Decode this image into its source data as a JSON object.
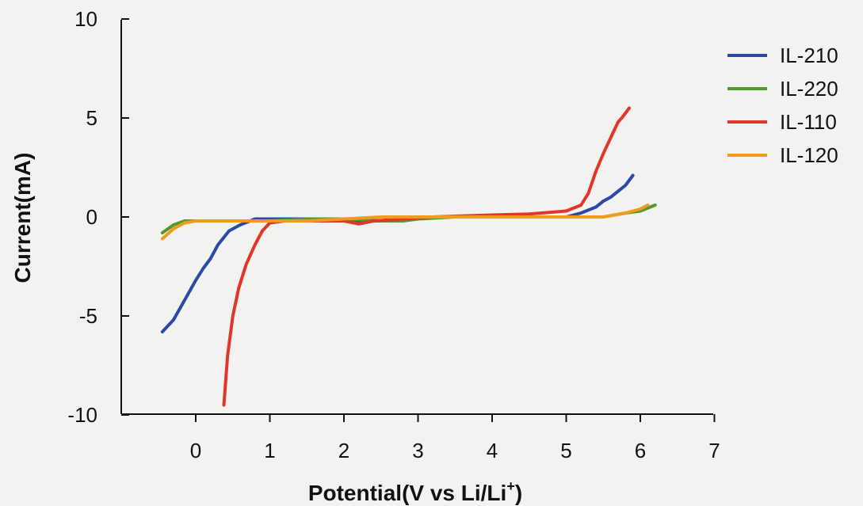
{
  "chart_data": {
    "type": "line",
    "xlabel": "Potential(V vs Li/Li",
    "xlabel_sup": "+",
    "xlabel_close": ")",
    "ylabel": "Current(mA)",
    "xlim": [
      -1,
      7
    ],
    "ylim": [
      -10,
      10
    ],
    "x_ticks": [
      0,
      1,
      2,
      3,
      4,
      5,
      6,
      7
    ],
    "y_ticks": [
      -10,
      -5,
      0,
      5,
      10
    ],
    "x_tick_labels": [
      "0",
      "1",
      "2",
      "3",
      "4",
      "5",
      "6",
      "7"
    ],
    "y_tick_labels": [
      "-10",
      "-5",
      "0",
      "5",
      "10"
    ],
    "grid": false,
    "legend_position": "top-right",
    "series": [
      {
        "name": "IL-210",
        "color": "#2b4aa8",
        "points": [
          [
            -0.45,
            -5.8
          ],
          [
            -0.3,
            -5.2
          ],
          [
            -0.15,
            -4.2
          ],
          [
            0,
            -3.2
          ],
          [
            0.1,
            -2.6
          ],
          [
            0.2,
            -2.1
          ],
          [
            0.3,
            -1.4
          ],
          [
            0.45,
            -0.7
          ],
          [
            0.6,
            -0.4
          ],
          [
            0.8,
            -0.1
          ],
          [
            1.0,
            -0.1
          ],
          [
            1.5,
            -0.1
          ],
          [
            2.0,
            -0.2
          ],
          [
            2.5,
            -0.2
          ],
          [
            3.0,
            0.0
          ],
          [
            3.5,
            0.0
          ],
          [
            4.0,
            0.0
          ],
          [
            4.5,
            0.0
          ],
          [
            5.0,
            0.0
          ],
          [
            5.2,
            0.2
          ],
          [
            5.4,
            0.5
          ],
          [
            5.5,
            0.8
          ],
          [
            5.6,
            1.0
          ],
          [
            5.7,
            1.3
          ],
          [
            5.8,
            1.6
          ],
          [
            5.9,
            2.1
          ]
        ]
      },
      {
        "name": "IL-220",
        "color": "#4e9a2c",
        "points": [
          [
            -0.45,
            -0.8
          ],
          [
            -0.3,
            -0.4
          ],
          [
            -0.15,
            -0.2
          ],
          [
            0,
            -0.2
          ],
          [
            0.5,
            -0.2
          ],
          [
            1.0,
            -0.2
          ],
          [
            1.5,
            -0.1
          ],
          [
            2.0,
            -0.1
          ],
          [
            2.5,
            -0.2
          ],
          [
            2.8,
            -0.2
          ],
          [
            3.0,
            -0.1
          ],
          [
            3.5,
            0.0
          ],
          [
            4.0,
            0.0
          ],
          [
            4.5,
            0.0
          ],
          [
            5.0,
            0.0
          ],
          [
            5.5,
            0.0
          ],
          [
            5.8,
            0.2
          ],
          [
            6.0,
            0.3
          ],
          [
            6.2,
            0.6
          ]
        ]
      },
      {
        "name": "IL-110",
        "color": "#e2362b",
        "points": [
          [
            0.38,
            -9.5
          ],
          [
            0.43,
            -7.0
          ],
          [
            0.5,
            -5.0
          ],
          [
            0.58,
            -3.6
          ],
          [
            0.68,
            -2.4
          ],
          [
            0.8,
            -1.4
          ],
          [
            0.9,
            -0.7
          ],
          [
            1.0,
            -0.3
          ],
          [
            1.2,
            -0.2
          ],
          [
            1.6,
            -0.2
          ],
          [
            2.0,
            -0.2
          ],
          [
            2.2,
            -0.35
          ],
          [
            2.4,
            -0.2
          ],
          [
            2.8,
            -0.1
          ],
          [
            3.2,
            0.0
          ],
          [
            3.6,
            0.05
          ],
          [
            4.0,
            0.1
          ],
          [
            4.5,
            0.15
          ],
          [
            5.0,
            0.3
          ],
          [
            5.2,
            0.6
          ],
          [
            5.3,
            1.2
          ],
          [
            5.4,
            2.3
          ],
          [
            5.5,
            3.2
          ],
          [
            5.6,
            4.0
          ],
          [
            5.7,
            4.8
          ],
          [
            5.75,
            5.0
          ],
          [
            5.85,
            5.5
          ]
        ]
      },
      {
        "name": "IL-120",
        "color": "#f29a20",
        "points": [
          [
            -0.45,
            -1.1
          ],
          [
            -0.3,
            -0.6
          ],
          [
            -0.15,
            -0.3
          ],
          [
            0,
            -0.2
          ],
          [
            0.5,
            -0.2
          ],
          [
            1.0,
            -0.2
          ],
          [
            1.5,
            -0.2
          ],
          [
            2.0,
            -0.1
          ],
          [
            2.5,
            0.0
          ],
          [
            3.0,
            0.0
          ],
          [
            3.5,
            0.0
          ],
          [
            4.0,
            0.0
          ],
          [
            4.5,
            0.0
          ],
          [
            5.0,
            0.0
          ],
          [
            5.5,
            0.0
          ],
          [
            5.8,
            0.2
          ],
          [
            6.0,
            0.4
          ],
          [
            6.1,
            0.6
          ]
        ]
      }
    ]
  }
}
